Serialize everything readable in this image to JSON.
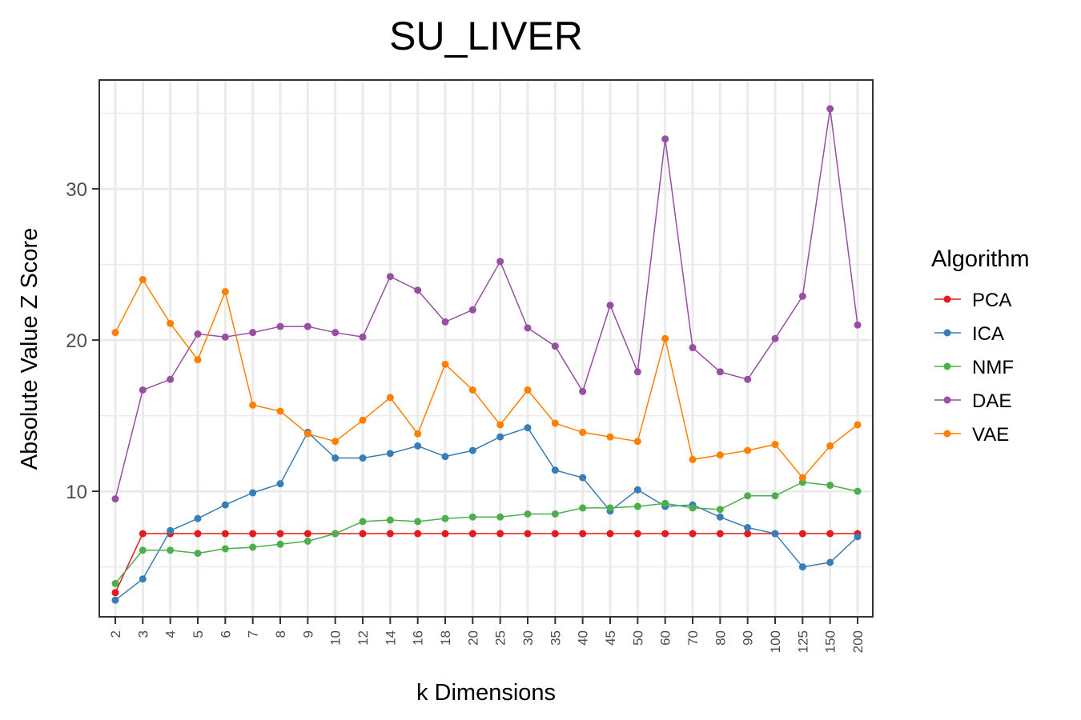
{
  "chart_data": {
    "type": "line",
    "title": "SU_LIVER",
    "xlabel": "k Dimensions",
    "ylabel": "Absolute Value Z Score",
    "x": [
      "2",
      "3",
      "4",
      "5",
      "6",
      "7",
      "8",
      "9",
      "10",
      "12",
      "14",
      "16",
      "18",
      "20",
      "25",
      "30",
      "35",
      "40",
      "45",
      "50",
      "60",
      "70",
      "80",
      "90",
      "100",
      "125",
      "150",
      "200"
    ],
    "y_ticks": [
      10,
      20,
      30
    ],
    "ylim": [
      1.7,
      37.2
    ],
    "grid": true,
    "legend": {
      "title": "Algorithm",
      "placement": "right"
    },
    "series": [
      {
        "name": "PCA",
        "color": "#e41a1c",
        "values": [
          3.3,
          7.2,
          7.2,
          7.2,
          7.2,
          7.2,
          7.2,
          7.2,
          7.2,
          7.2,
          7.2,
          7.2,
          7.2,
          7.2,
          7.2,
          7.2,
          7.2,
          7.2,
          7.2,
          7.2,
          7.2,
          7.2,
          7.2,
          7.2,
          7.2,
          7.2,
          7.2,
          7.2
        ]
      },
      {
        "name": "ICA",
        "color": "#377eb8",
        "values": [
          2.8,
          4.2,
          7.4,
          8.2,
          9.1,
          9.9,
          10.5,
          13.9,
          12.2,
          12.2,
          12.5,
          13.0,
          12.3,
          12.7,
          13.6,
          14.2,
          11.4,
          10.9,
          8.7,
          10.1,
          9.0,
          9.1,
          8.3,
          7.6,
          7.2,
          5.0,
          5.3,
          7.0
        ]
      },
      {
        "name": "NMF",
        "color": "#4daf4a",
        "values": [
          3.9,
          6.1,
          6.1,
          5.9,
          6.2,
          6.3,
          6.5,
          6.7,
          7.2,
          8.0,
          8.1,
          8.0,
          8.2,
          8.3,
          8.3,
          8.5,
          8.5,
          8.9,
          8.9,
          9.0,
          9.2,
          8.9,
          8.8,
          9.7,
          9.7,
          10.6,
          10.4,
          10.0
        ]
      },
      {
        "name": "DAE",
        "color": "#984ea3",
        "values": [
          9.5,
          16.7,
          17.4,
          20.4,
          20.2,
          20.5,
          20.9,
          20.9,
          20.5,
          20.2,
          24.2,
          23.3,
          21.2,
          22.0,
          25.2,
          20.8,
          19.6,
          16.6,
          22.3,
          17.9,
          33.3,
          19.5,
          17.9,
          17.4,
          20.1,
          22.9,
          35.3,
          21.0
        ]
      },
      {
        "name": "VAE",
        "color": "#ff7f00",
        "values": [
          20.5,
          24.0,
          21.1,
          18.7,
          23.2,
          15.7,
          15.3,
          13.8,
          13.3,
          14.7,
          16.2,
          13.8,
          18.4,
          16.7,
          14.4,
          16.7,
          14.5,
          13.9,
          13.6,
          13.3,
          20.1,
          12.1,
          12.4,
          12.7,
          13.1,
          10.9,
          13.0,
          14.4
        ]
      }
    ]
  }
}
